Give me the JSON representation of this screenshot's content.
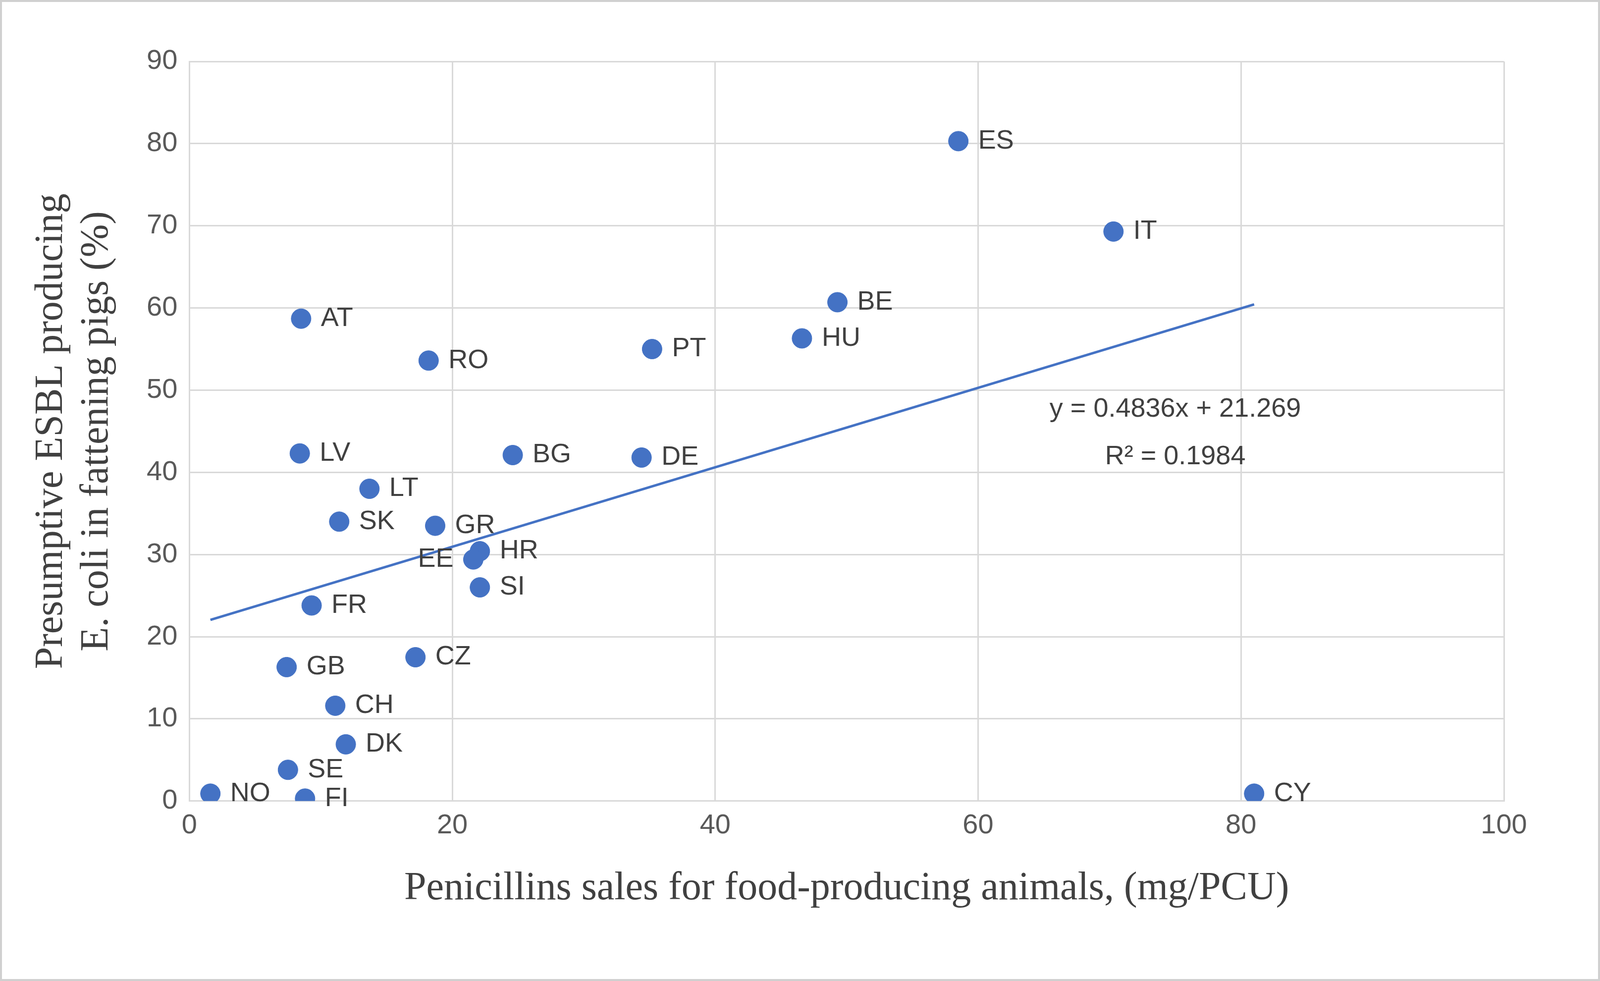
{
  "chart_data": {
    "type": "scatter",
    "x_label": "Penicillins sales for food-producing animals, (mg/PCU)",
    "y_label": "Presumptive ESBL producing E. coli in fattening pigs (%)",
    "point_labels": [
      "ES",
      "IT",
      "BE",
      "HU",
      "PT",
      "AT",
      "RO",
      "LV",
      "BG",
      "DE",
      "LT",
      "SK",
      "GR",
      "HR",
      "EE",
      "SI",
      "FR",
      "GB",
      "CZ",
      "CH",
      "DK",
      "SE",
      "NO",
      "FI",
      "CY"
    ],
    "x": [
      58.5,
      70.3,
      49.3,
      46.6,
      35.2,
      8.5,
      18.2,
      8.4,
      24.6,
      34.4,
      13.7,
      11.4,
      18.7,
      22.1,
      21.6,
      22.1,
      9.3,
      7.4,
      17.2,
      11.1,
      11.9,
      7.5,
      1.6,
      8.8,
      81.0
    ],
    "values": [
      80.3,
      69.3,
      60.7,
      56.3,
      55.0,
      58.7,
      53.6,
      42.3,
      42.1,
      41.8,
      38.0,
      34.0,
      33.5,
      30.4,
      29.4,
      26.0,
      23.8,
      16.3,
      17.5,
      11.6,
      6.9,
      3.8,
      0.9,
      0.3,
      0.9
    ],
    "color": "#4472c4",
    "marker": "circle",
    "xlim": [
      0,
      100
    ],
    "xticks": [
      0,
      20,
      40,
      60,
      80,
      100
    ],
    "ylim": [
      0,
      90
    ],
    "yticks": [
      0,
      10,
      20,
      30,
      40,
      50,
      60,
      70,
      80,
      90
    ],
    "grid": true,
    "trendline": {
      "slope": 0.4836,
      "intercept": 21.269,
      "equation": "y = 0.4836x + 21.269",
      "r_squared_label": "R² = 0.1984"
    }
  }
}
